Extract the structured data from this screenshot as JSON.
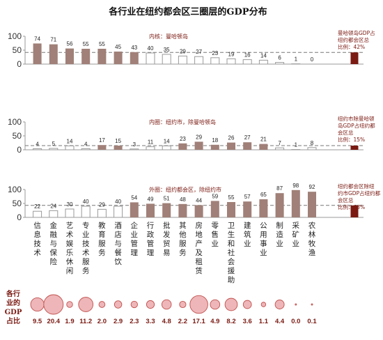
{
  "colors": {
    "bar_fill": "#a08078",
    "bar_hollow_stroke": "#9a9a9a",
    "total_fill": "#7a1a12",
    "bubble_fill": "#eeb6b8",
    "bubble_stroke": "#c0504d",
    "dash": "#777777",
    "axis": "#999999",
    "text_accent": "#7a1a12"
  },
  "chart_data": {
    "type": "bar",
    "title": "各行业在纽约都会区三圈层的GDP分布",
    "categories": [
      "信息技术",
      "金融与保险",
      "艺术娱乐休闲",
      "专业技术服务",
      "教育服务",
      "酒店与餐饮",
      "企业管理",
      "行政管理",
      "批发贸易",
      "其他服务",
      "房地产及租赁",
      "零售业",
      "卫生和社会援助",
      "建筑业",
      "公用事业",
      "制造业",
      "采矿业",
      "农林牧渔"
    ],
    "ylim": [
      0,
      100
    ],
    "yticks": [
      "0",
      "50",
      "100"
    ],
    "panels": [
      {
        "name": "内核：曼哈顿岛",
        "values": [
          74,
          71,
          56,
          55,
          55,
          45,
          43,
          40,
          35,
          29,
          27,
          23,
          19,
          16,
          14,
          6,
          1,
          0
        ],
        "hollow": [
          false,
          false,
          false,
          false,
          false,
          false,
          false,
          true,
          true,
          true,
          true,
          true,
          true,
          true,
          true,
          true,
          true,
          true
        ],
        "total_value": 42,
        "note_lines": [
          "曼哈顿岛GDP占",
          "纽约都会区总",
          "比例：42%"
        ]
      },
      {
        "name": "内圈：纽约市，除曼哈顿岛",
        "values": [
          4,
          5,
          14,
          4,
          17,
          15,
          3,
          11,
          14,
          23,
          29,
          18,
          26,
          27,
          21,
          7,
          1,
          8
        ],
        "hollow": [
          true,
          true,
          true,
          true,
          false,
          false,
          true,
          true,
          true,
          false,
          false,
          false,
          false,
          false,
          false,
          true,
          true,
          true
        ],
        "total_value": 15,
        "note_lines": [
          "纽约市除曼哈顿",
          "岛GDP占纽约都",
          "会区总",
          "比例：15%"
        ]
      },
      {
        "name": "外圈：纽约都会区，除纽约市",
        "values": [
          22,
          24,
          30,
          40,
          29,
          40,
          54,
          49,
          51,
          48,
          44,
          59,
          55,
          57,
          65,
          87,
          98,
          92
        ],
        "hollow": [
          true,
          true,
          true,
          true,
          true,
          true,
          false,
          false,
          false,
          false,
          false,
          false,
          false,
          false,
          false,
          false,
          false,
          false
        ],
        "total_value": 43,
        "note_lines": [
          "纽约都会区除纽",
          "约市GDP占纽约都",
          "会区总",
          "比例：43%"
        ]
      }
    ],
    "gdp_share": {
      "label_lines": [
        "各行",
        "业的",
        "GDP",
        "占比"
      ],
      "values": [
        "9.5",
        "20.4",
        "1.9",
        "11.2",
        "2.0",
        "2.9",
        "2.3",
        "3.3",
        "4.8",
        "2.2",
        "17.1",
        "4.9",
        "8.2",
        "3.6",
        "1.1",
        "4.4",
        "0.0",
        "0.1"
      ]
    }
  }
}
